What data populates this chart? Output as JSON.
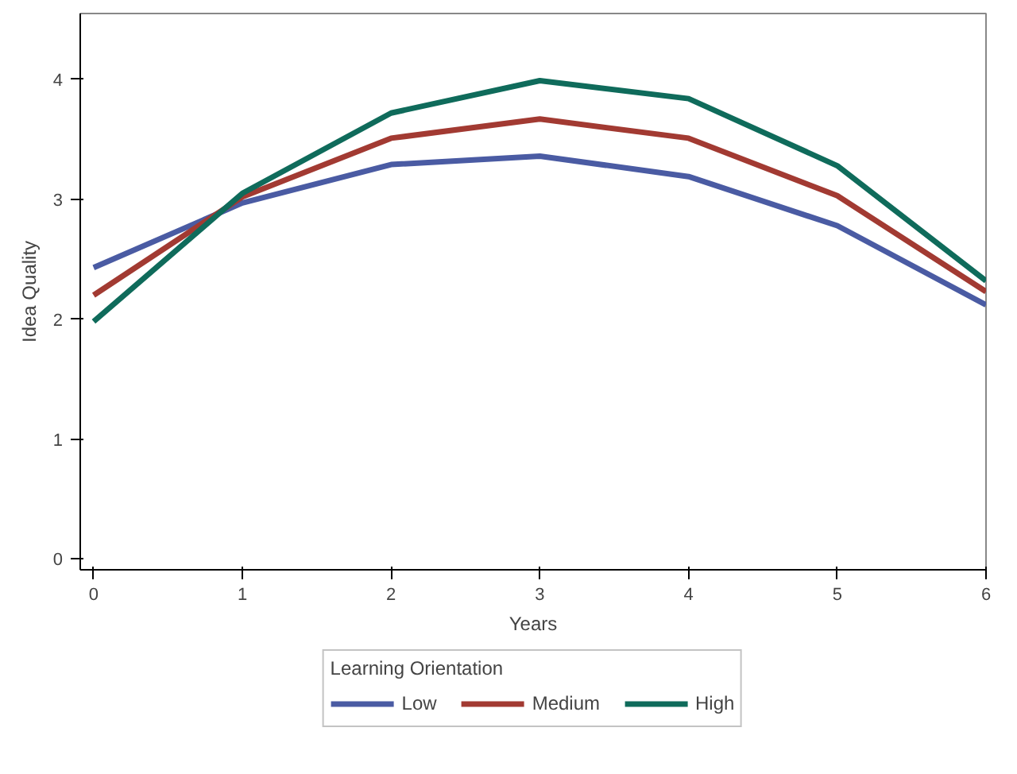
{
  "chart_data": {
    "type": "line",
    "xlabel": "Years",
    "ylabel": "Idea Quality",
    "legend_title": "Learning Orientation",
    "legend": "bottom",
    "grid": false,
    "line_style": "solid",
    "x": [
      0,
      1,
      2,
      3,
      4,
      5,
      6
    ],
    "xlim": [
      -0.09,
      6
    ],
    "ylim": [
      -0.09,
      4.55
    ],
    "xticks": [
      0,
      1,
      2,
      3,
      4,
      5,
      6
    ],
    "yticks": [
      0,
      1,
      2,
      3,
      4
    ],
    "series": [
      {
        "name": "Low",
        "color": "#4a5ba3",
        "values": [
          2.43,
          2.97,
          3.29,
          3.36,
          3.19,
          2.78,
          2.12
        ]
      },
      {
        "name": "Medium",
        "color": "#a23a32",
        "values": [
          2.2,
          3.02,
          3.51,
          3.67,
          3.51,
          3.03,
          2.23
        ]
      },
      {
        "name": "High",
        "color": "#0f6b5b",
        "values": [
          1.98,
          3.05,
          3.72,
          3.99,
          3.84,
          3.28,
          2.32
        ]
      }
    ]
  }
}
